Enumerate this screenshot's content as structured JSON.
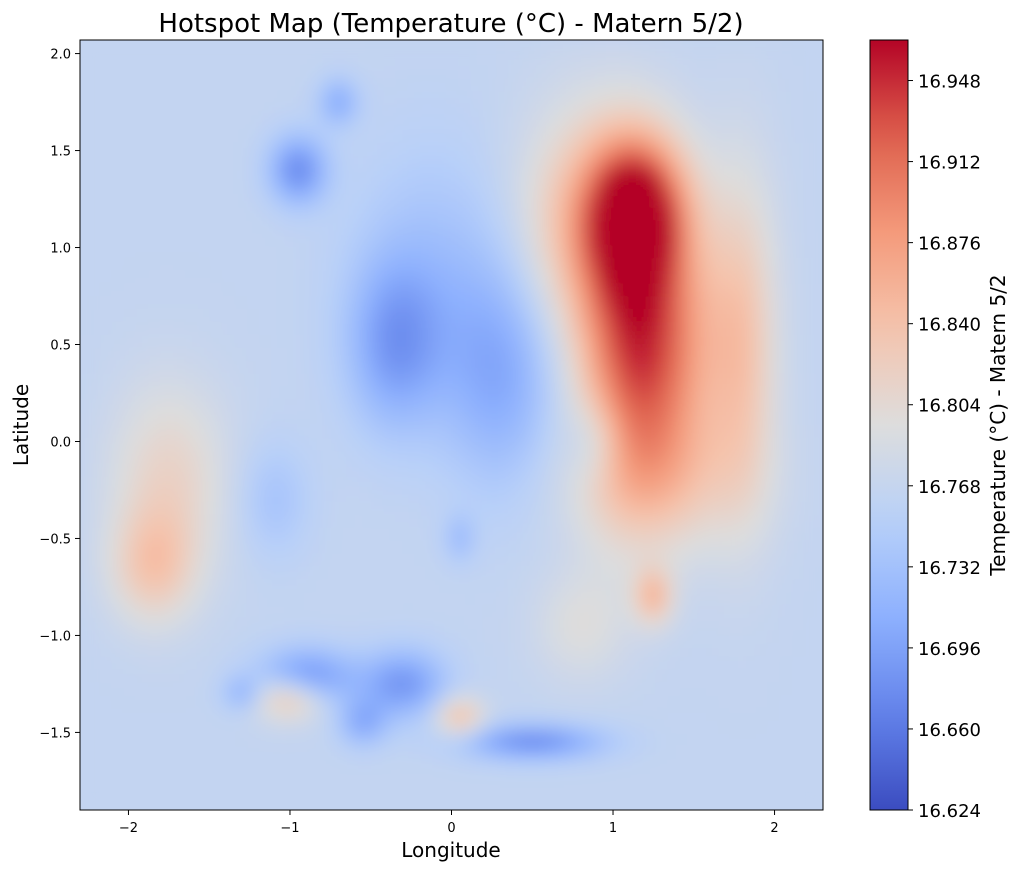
{
  "chart_data": {
    "type": "heatmap",
    "title": "Hotspot Map (Temperature (°C) - Matern 5/2)",
    "xlabel": "Longitude",
    "ylabel": "Latitude",
    "xlim": [
      -2.3,
      2.3
    ],
    "ylim": [
      -1.9,
      2.07
    ],
    "xticks": [
      -2,
      -1,
      0,
      1,
      2
    ],
    "xtick_labels": [
      "−2",
      "−1",
      "0",
      "1",
      "2"
    ],
    "yticks": [
      -1.5,
      -1.0,
      -0.5,
      0.0,
      0.5,
      1.0,
      1.5,
      2.0
    ],
    "ytick_labels": [
      "−1.5",
      "−1.0",
      "−0.5",
      "0.0",
      "0.5",
      "1.0",
      "1.5",
      "2.0"
    ],
    "colormap": "coolwarm",
    "colorbar": {
      "label": "Temperature (°C) - Matern 5/2",
      "min": 16.624,
      "max": 16.966,
      "ticks": [
        16.624,
        16.66,
        16.696,
        16.732,
        16.768,
        16.804,
        16.84,
        16.876,
        16.912,
        16.948
      ],
      "tick_labels": [
        "16.624",
        "16.660",
        "16.696",
        "16.732",
        "16.768",
        "16.804",
        "16.840",
        "16.876",
        "16.912",
        "16.948"
      ]
    },
    "background_value": 16.765,
    "hotspots": [
      {
        "x": 1.1,
        "y": 0.5,
        "sx": 0.22,
        "sy": 0.55,
        "amp": 0.14
      },
      {
        "x": 1.15,
        "y": 1.2,
        "sx": 0.2,
        "sy": 0.25,
        "amp": 0.16
      },
      {
        "x": 1.4,
        "y": 0.5,
        "sx": 0.2,
        "sy": 0.5,
        "amp": 0.08
      },
      {
        "x": 0.85,
        "y": 1.1,
        "sx": 0.3,
        "sy": 0.4,
        "amp": 0.08
      },
      {
        "x": 1.8,
        "y": 0.5,
        "sx": 0.15,
        "sy": 0.6,
        "amp": 0.07
      },
      {
        "x": 1.3,
        "y": -0.2,
        "sx": 0.4,
        "sy": 0.25,
        "amp": 0.04
      },
      {
        "x": -1.75,
        "y": -0.2,
        "sx": 0.25,
        "sy": 0.35,
        "amp": 0.05
      },
      {
        "x": -1.85,
        "y": -0.65,
        "sx": 0.18,
        "sy": 0.2,
        "amp": 0.06
      },
      {
        "x": -1.0,
        "y": -1.32,
        "sx": 0.15,
        "sy": 0.08,
        "amp": 0.09
      },
      {
        "x": 0.05,
        "y": -1.42,
        "sx": 0.1,
        "sy": 0.07,
        "amp": 0.08
      },
      {
        "x": 1.25,
        "y": -0.8,
        "sx": 0.08,
        "sy": 0.1,
        "amp": 0.08
      },
      {
        "x": 0.8,
        "y": -0.95,
        "sx": 0.2,
        "sy": 0.2,
        "amp": 0.03
      },
      {
        "x": -0.35,
        "y": 0.5,
        "sx": 0.2,
        "sy": 0.3,
        "amp": -0.07
      },
      {
        "x": 0.3,
        "y": 0.35,
        "sx": 0.25,
        "sy": 0.4,
        "amp": -0.06
      },
      {
        "x": -0.1,
        "y": 0.9,
        "sx": 0.35,
        "sy": 0.45,
        "amp": -0.03
      },
      {
        "x": -0.95,
        "y": 1.4,
        "sx": 0.12,
        "sy": 0.12,
        "amp": -0.09
      },
      {
        "x": -0.7,
        "y": 1.75,
        "sx": 0.08,
        "sy": 0.08,
        "amp": -0.06
      },
      {
        "x": -0.9,
        "y": -1.22,
        "sx": 0.2,
        "sy": 0.1,
        "amp": -0.09
      },
      {
        "x": -0.3,
        "y": -1.25,
        "sx": 0.18,
        "sy": 0.12,
        "amp": -0.08
      },
      {
        "x": 0.5,
        "y": -1.55,
        "sx": 0.3,
        "sy": 0.06,
        "amp": -0.09
      },
      {
        "x": -0.55,
        "y": -1.45,
        "sx": 0.1,
        "sy": 0.08,
        "amp": -0.06
      },
      {
        "x": -1.3,
        "y": -1.3,
        "sx": 0.08,
        "sy": 0.06,
        "amp": -0.05
      },
      {
        "x": -1.1,
        "y": -0.3,
        "sx": 0.15,
        "sy": 0.2,
        "amp": -0.03
      },
      {
        "x": 0.9,
        "y": 0.0,
        "sx": 0.12,
        "sy": 0.15,
        "amp": -0.04
      },
      {
        "x": 0.05,
        "y": -0.5,
        "sx": 0.06,
        "sy": 0.08,
        "amp": -0.04
      }
    ]
  }
}
